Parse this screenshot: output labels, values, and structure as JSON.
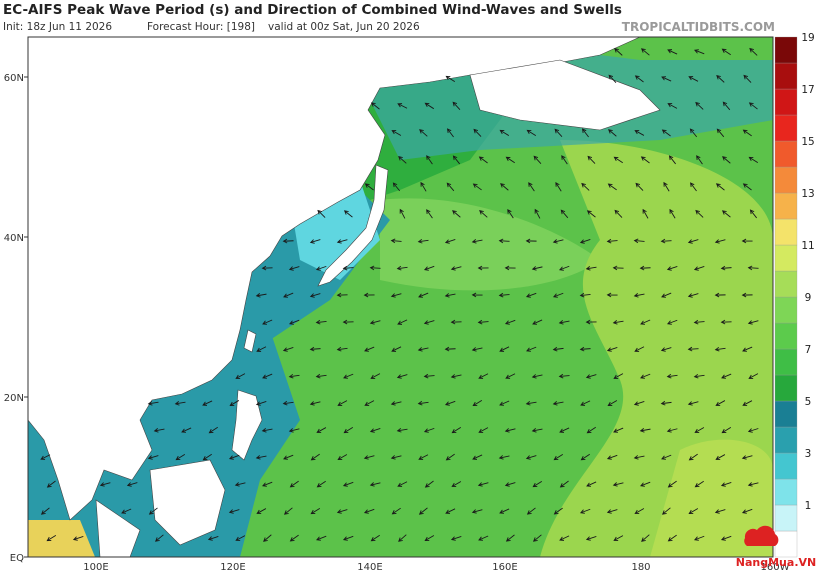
{
  "header": {
    "title": "EC-AIFS Peak Wave Period (s) and Direction of Combined Wind-Waves and Swells",
    "init": "Init: 18z Jun 11 2026",
    "forecast_hour": "Forecast Hour: [198]",
    "valid": "valid at 00z Sat, Jun 20 2026",
    "source": "TROPICALTIDBITS.COM"
  },
  "map": {
    "lat_labels": [
      "60N",
      "40N",
      "20N",
      "EQ"
    ],
    "lon_labels": [
      "100E",
      "120E",
      "140E",
      "160E",
      "180",
      "160W"
    ]
  },
  "colorbar": {
    "labels": [
      "1",
      "3",
      "5",
      "7",
      "9",
      "11",
      "13",
      "15",
      "17",
      "19"
    ]
  },
  "logo": "NangMua.VN"
}
